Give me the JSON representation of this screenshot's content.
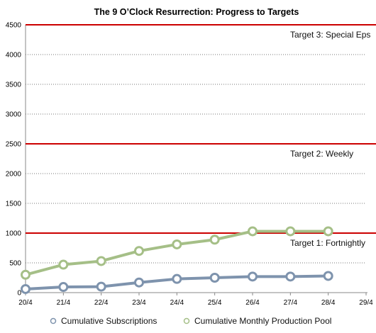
{
  "chart_data": {
    "type": "line",
    "title": "The 9 O’Clock Resurrection: Progress to Targets",
    "categories": [
      "20/4",
      "21/4",
      "22/4",
      "23/4",
      "24/4",
      "25/4",
      "26/4",
      "27/4",
      "28/4",
      "29/4"
    ],
    "ylim": [
      0,
      4500
    ],
    "y_ticks": [
      0,
      500,
      1000,
      1500,
      2000,
      2500,
      3000,
      3500,
      4000,
      4500
    ],
    "y_tick_labels": [
      "0",
      "500",
      "1000",
      "1500",
      "2000",
      "2500",
      "3000",
      "3500",
      "4000",
      "4500"
    ],
    "grid": "horizontal dotted",
    "legend_position": "bottom",
    "series": [
      {
        "name": "Cumulative Subscriptions",
        "color": "#7e93ad",
        "values": [
          60,
          95,
          100,
          170,
          230,
          250,
          270,
          270,
          280,
          null
        ]
      },
      {
        "name": "Cumulative Monthly Production Pool",
        "color": "#a5bf87",
        "values": [
          300,
          470,
          530,
          700,
          810,
          890,
          1030,
          1030,
          1030,
          null
        ]
      }
    ],
    "targets": [
      {
        "value": 4500,
        "label": "Target 3: Special Eps",
        "color": "#cc0000"
      },
      {
        "value": 2500,
        "label": "Target 2: Weekly",
        "color": "#cc0000"
      },
      {
        "value": 1000,
        "label": "Target 1: Fortnightly",
        "color": "#cc0000"
      }
    ]
  }
}
